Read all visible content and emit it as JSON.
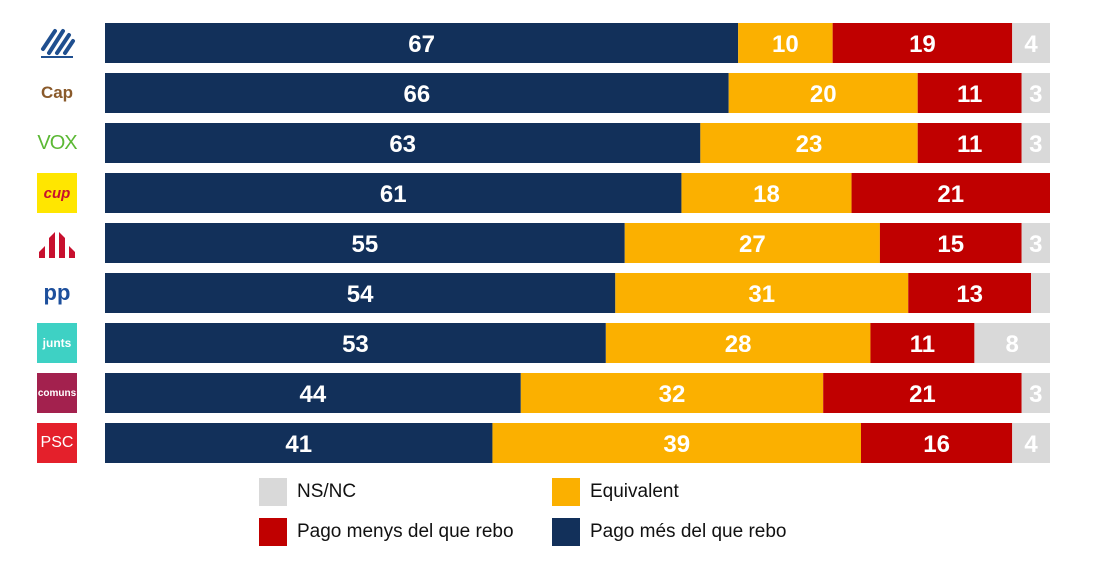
{
  "chart_data": {
    "type": "bar",
    "orientation": "horizontal",
    "stacked": true,
    "categories": [
      "",
      "Cap",
      "VOX",
      "CUP",
      "",
      "PP",
      "junts",
      "comuns",
      "PSC"
    ],
    "category_logos": [
      "blue-tree-logo",
      "cap-text-logo",
      "vox-logo",
      "cup-logo",
      "erc-stripes-logo",
      "pp-logo",
      "junts-logo",
      "comuns-logo",
      "psc-logo"
    ],
    "series": [
      {
        "name": "Pago més del que rebo",
        "color": "#12305a",
        "values": [
          67,
          66,
          63,
          61,
          55,
          54,
          53,
          44,
          41
        ]
      },
      {
        "name": "Equivalent",
        "color": "#fbb000",
        "values": [
          10,
          20,
          23,
          18,
          27,
          31,
          28,
          32,
          39
        ]
      },
      {
        "name": "Pago menys del que rebo",
        "color": "#c00000",
        "values": [
          19,
          11,
          11,
          21,
          15,
          13,
          11,
          21,
          16
        ]
      },
      {
        "name": "NS/NC",
        "color": "#d9d9d9",
        "values": [
          4,
          3,
          3,
          0,
          3,
          2,
          8,
          3,
          4
        ]
      }
    ],
    "xlim": [
      0,
      100
    ],
    "grid": false,
    "legend_position": "bottom",
    "legend_order": [
      "NS/NC",
      "Equivalent",
      "Pago menys del que rebo",
      "Pago més del que rebo"
    ]
  }
}
